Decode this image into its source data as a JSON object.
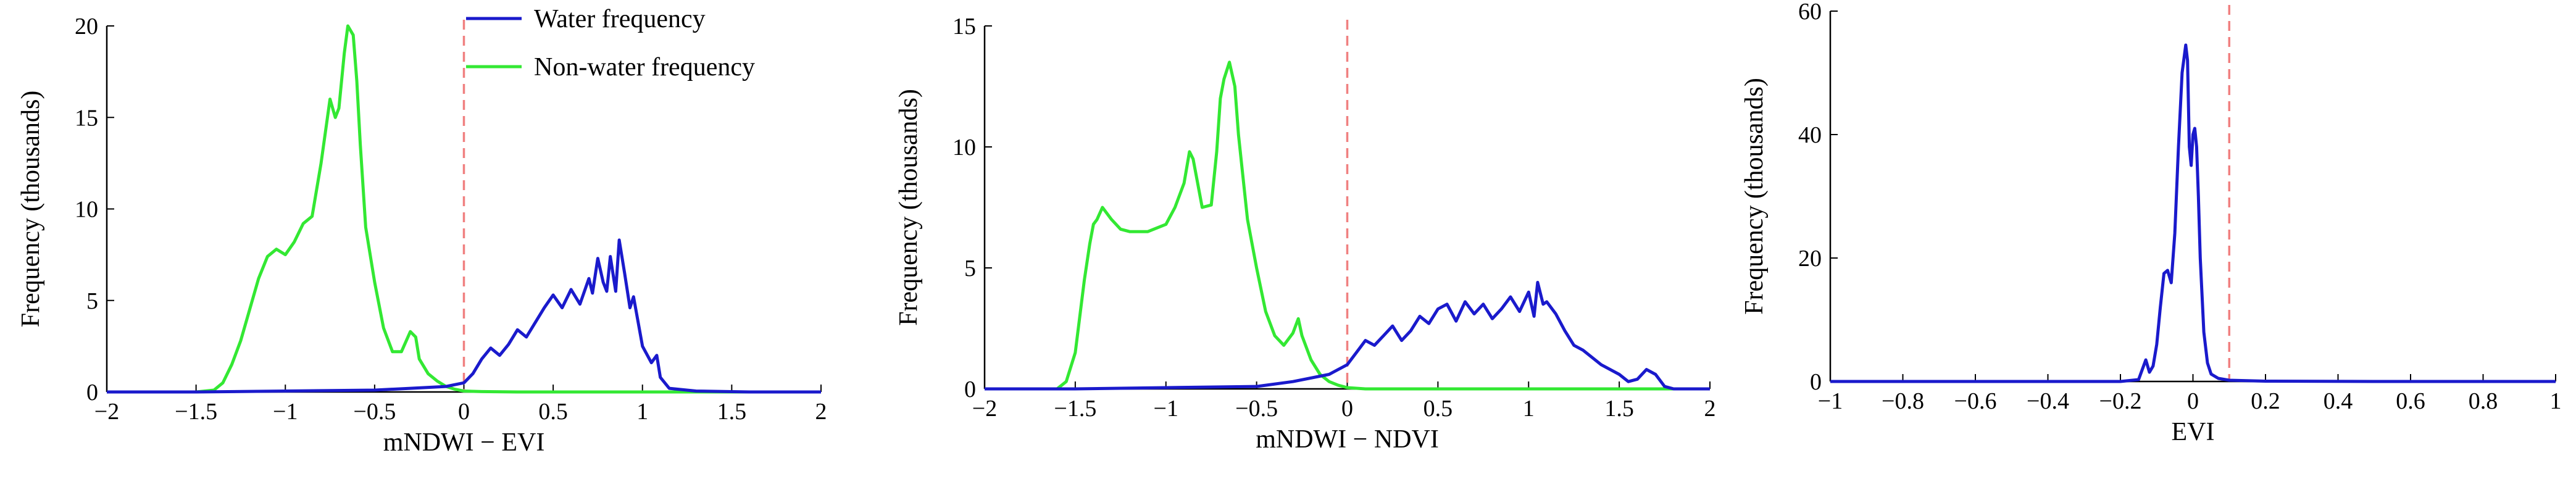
{
  "figure": {
    "legend_location": "top-right of first panel"
  },
  "chart_data": [
    {
      "type": "line",
      "xlabel": "mNDWI − EVI",
      "ylabel": "Frequency (thousands)",
      "xlim": [
        -2,
        2
      ],
      "ylim": [
        0,
        20
      ],
      "xticks": [
        "−2",
        "−1.5",
        "−1",
        "−0.5",
        "0",
        "0.5",
        "1",
        "1.5",
        "2"
      ],
      "yticks": [
        "0",
        "5",
        "10",
        "15",
        "20"
      ],
      "threshold": 0,
      "threshold_color": "#f08080",
      "legend": [
        "Water frequency",
        "Non-water frequency"
      ],
      "series": [
        {
          "name": "Non-water frequency",
          "color": "#33e833",
          "x": [
            -2,
            -1.5,
            -1.4,
            -1.35,
            -1.3,
            -1.25,
            -1.2,
            -1.15,
            -1.1,
            -1.05,
            -1.0,
            -0.95,
            -0.9,
            -0.85,
            -0.8,
            -0.75,
            -0.72,
            -0.7,
            -0.67,
            -0.65,
            -0.62,
            -0.6,
            -0.58,
            -0.55,
            -0.5,
            -0.45,
            -0.4,
            -0.35,
            -0.3,
            -0.27,
            -0.25,
            -0.2,
            -0.15,
            -0.1,
            -0.05,
            0,
            0.1,
            0.3,
            0.5,
            1,
            1.5,
            2
          ],
          "y": [
            0,
            0,
            0.1,
            0.5,
            1.5,
            2.8,
            4.5,
            6.2,
            7.4,
            7.8,
            7.5,
            8.2,
            9.2,
            9.6,
            12.5,
            16.0,
            15.0,
            15.5,
            18.5,
            20.0,
            19.5,
            17.0,
            13.5,
            9.0,
            6.0,
            3.5,
            2.2,
            2.2,
            3.3,
            3.0,
            1.8,
            1.0,
            0.6,
            0.3,
            0.15,
            0.05,
            0.02,
            0,
            0,
            0,
            0,
            0
          ]
        },
        {
          "name": "Water frequency",
          "color": "#1a1acc",
          "x": [
            -2,
            -1.5,
            -1.0,
            -0.5,
            -0.3,
            -0.1,
            0,
            0.05,
            0.1,
            0.15,
            0.2,
            0.25,
            0.3,
            0.35,
            0.4,
            0.45,
            0.5,
            0.55,
            0.6,
            0.65,
            0.7,
            0.72,
            0.75,
            0.78,
            0.8,
            0.82,
            0.85,
            0.87,
            0.9,
            0.93,
            0.95,
            1.0,
            1.05,
            1.08,
            1.1,
            1.15,
            1.3,
            1.6,
            2
          ],
          "y": [
            0,
            0,
            0.05,
            0.1,
            0.2,
            0.3,
            0.5,
            1.0,
            1.8,
            2.4,
            2.0,
            2.6,
            3.4,
            3.0,
            3.8,
            4.6,
            5.3,
            4.6,
            5.6,
            4.8,
            6.2,
            5.4,
            7.3,
            6.0,
            5.5,
            7.4,
            5.5,
            8.3,
            6.5,
            4.6,
            5.2,
            2.5,
            1.6,
            2.0,
            0.8,
            0.2,
            0.05,
            0,
            0
          ]
        }
      ]
    },
    {
      "type": "line",
      "xlabel": "mNDWI − NDVI",
      "ylabel": "Frequency (thousands)",
      "xlim": [
        -2,
        2
      ],
      "ylim": [
        0,
        15
      ],
      "xticks": [
        "−2",
        "−1.5",
        "−1",
        "−0.5",
        "0",
        "0.5",
        "1",
        "1.5",
        "2"
      ],
      "yticks": [
        "0",
        "5",
        "10",
        "15"
      ],
      "threshold": 0,
      "threshold_color": "#f08080",
      "series": [
        {
          "name": "Non-water frequency",
          "color": "#33e833",
          "x": [
            -2,
            -1.6,
            -1.55,
            -1.5,
            -1.45,
            -1.42,
            -1.4,
            -1.38,
            -1.35,
            -1.3,
            -1.25,
            -1.2,
            -1.1,
            -1.0,
            -0.95,
            -0.9,
            -0.87,
            -0.85,
            -0.8,
            -0.75,
            -0.72,
            -0.7,
            -0.68,
            -0.65,
            -0.62,
            -0.6,
            -0.55,
            -0.5,
            -0.45,
            -0.4,
            -0.35,
            -0.3,
            -0.27,
            -0.25,
            -0.2,
            -0.15,
            -0.1,
            -0.05,
            0,
            0.1,
            0.3,
            0.5,
            1,
            1.5,
            2
          ],
          "y": [
            0,
            0,
            0.3,
            1.5,
            4.5,
            6.0,
            6.8,
            7.0,
            7.5,
            7.0,
            6.6,
            6.5,
            6.5,
            6.8,
            7.5,
            8.5,
            9.8,
            9.5,
            7.5,
            7.6,
            9.8,
            12.0,
            12.8,
            13.5,
            12.5,
            10.5,
            7.0,
            5.0,
            3.2,
            2.2,
            1.8,
            2.3,
            2.9,
            2.2,
            1.2,
            0.6,
            0.3,
            0.15,
            0.05,
            0,
            0,
            0,
            0,
            0,
            0
          ]
        },
        {
          "name": "Water frequency",
          "color": "#1a1acc",
          "x": [
            -2,
            -1.5,
            -1.0,
            -0.5,
            -0.3,
            -0.1,
            0,
            0.05,
            0.1,
            0.15,
            0.2,
            0.25,
            0.3,
            0.35,
            0.4,
            0.45,
            0.5,
            0.55,
            0.6,
            0.65,
            0.7,
            0.75,
            0.8,
            0.85,
            0.9,
            0.95,
            1.0,
            1.03,
            1.05,
            1.08,
            1.1,
            1.15,
            1.2,
            1.25,
            1.3,
            1.4,
            1.5,
            1.55,
            1.6,
            1.65,
            1.7,
            1.75,
            1.8,
            2
          ],
          "y": [
            0,
            0,
            0.05,
            0.1,
            0.3,
            0.6,
            1.0,
            1.5,
            2.0,
            1.8,
            2.2,
            2.6,
            2.0,
            2.4,
            3.0,
            2.7,
            3.3,
            3.5,
            2.8,
            3.6,
            3.1,
            3.5,
            2.9,
            3.3,
            3.8,
            3.2,
            4.0,
            3.0,
            4.4,
            3.5,
            3.6,
            3.1,
            2.4,
            1.8,
            1.6,
            1.0,
            0.6,
            0.3,
            0.4,
            0.8,
            0.6,
            0.1,
            0,
            0
          ]
        }
      ]
    },
    {
      "type": "line",
      "xlabel": "EVI",
      "ylabel": "Frequency (thousands)",
      "xlim": [
        -1,
        1
      ],
      "ylim": [
        0,
        60
      ],
      "xticks": [
        "−1",
        "−0.8",
        "−0.6",
        "−0.4",
        "−0.2",
        "0",
        "0.2",
        "0.4",
        "0.6",
        "0.8",
        "1"
      ],
      "yticks": [
        "0",
        "20",
        "40",
        "60"
      ],
      "threshold": 0.1,
      "threshold_color": "#f08080",
      "series": [
        {
          "name": "Water frequency",
          "color": "#1a1acc",
          "x": [
            -1,
            -0.2,
            -0.15,
            -0.13,
            -0.12,
            -0.11,
            -0.1,
            -0.09,
            -0.08,
            -0.07,
            -0.06,
            -0.05,
            -0.04,
            -0.03,
            -0.02,
            -0.015,
            -0.01,
            -0.005,
            0,
            0.005,
            0.01,
            0.015,
            0.02,
            0.03,
            0.04,
            0.05,
            0.07,
            0.1,
            0.2,
            0.5,
            1
          ],
          "y": [
            0,
            0,
            0.3,
            3.5,
            1.5,
            2.5,
            6.0,
            12.0,
            17.5,
            18.0,
            16.0,
            24.0,
            38.0,
            50.0,
            54.5,
            52.0,
            38.0,
            35.0,
            40.0,
            41.0,
            38.0,
            30.0,
            20.0,
            8.0,
            3.0,
            1.2,
            0.5,
            0.2,
            0.05,
            0,
            0
          ]
        }
      ]
    }
  ]
}
